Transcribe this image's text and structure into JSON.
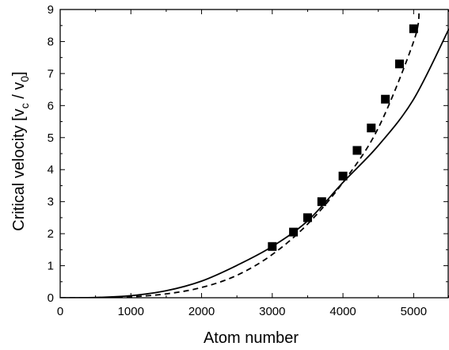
{
  "chart_data": {
    "type": "scatter",
    "title": "",
    "xlabel": "Atom number",
    "ylabel": {
      "prefix": "Critical velocity [v",
      "sub1": "c",
      "middle": " / v",
      "sub2": "0",
      "suffix": "]"
    },
    "xlim": [
      0,
      5500
    ],
    "ylim": [
      0,
      9
    ],
    "xticks": [
      0,
      1000,
      2000,
      3000,
      4000,
      5000
    ],
    "yticks": [
      0,
      1,
      2,
      3,
      4,
      5,
      6,
      7,
      8,
      9
    ],
    "grid": false,
    "series": [
      {
        "style": "markers",
        "marker": "square",
        "x": [
          3000,
          3300,
          3500,
          3700,
          4000,
          4200,
          4400,
          4600,
          4800,
          5000
        ],
        "y": [
          1.6,
          2.05,
          2.5,
          3.0,
          3.8,
          4.6,
          5.3,
          6.2,
          7.3,
          8.4
        ]
      },
      {
        "style": "solid-line",
        "x": [
          0,
          500,
          1000,
          1500,
          2000,
          2500,
          3000,
          3500,
          4000,
          4500,
          5000,
          5500
        ],
        "y": [
          0,
          0.008,
          0.065,
          0.22,
          0.52,
          1.01,
          1.6,
          2.4,
          3.6,
          4.75,
          6.2,
          8.4
        ]
      },
      {
        "style": "dashed-line",
        "x": [
          0,
          500,
          1000,
          1500,
          2000,
          2500,
          3000,
          3500,
          4000,
          4500,
          5000,
          5080
        ],
        "y": [
          0,
          0.0,
          0.03,
          0.12,
          0.32,
          0.7,
          1.35,
          2.3,
          3.6,
          5.3,
          8.0,
          9.0
        ]
      }
    ]
  }
}
